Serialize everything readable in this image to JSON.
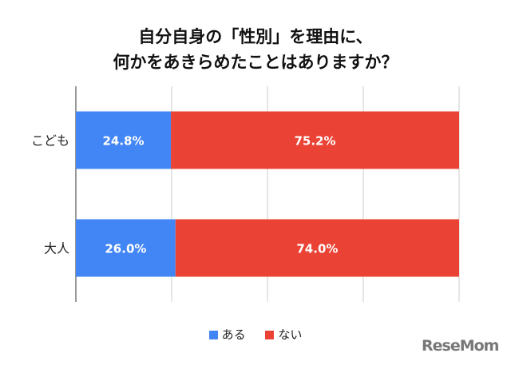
{
  "chart_data": {
    "type": "bar",
    "orientation": "horizontal",
    "stacked": true,
    "title": "自分自身の「性別」を理由に、\n何かをあきらめたことはありますか？",
    "title_lines": [
      "自分自身の「性別」を理由に、",
      "何かをあきらめたことはありますか？"
    ],
    "categories": [
      "こども",
      "大人"
    ],
    "series": [
      {
        "name": "ある",
        "values": [
          24.8,
          26.0
        ],
        "labels": [
          "24.8%",
          "26.0%"
        ],
        "color": "#4285F4"
      },
      {
        "name": "ない",
        "values": [
          75.2,
          74.0
        ],
        "labels": [
          "75.2%",
          "74.0%"
        ],
        "color": "#EA4335"
      }
    ],
    "xlim": [
      0,
      100
    ],
    "grid": true,
    "legend": "bottom"
  },
  "logo": "ReseMom"
}
